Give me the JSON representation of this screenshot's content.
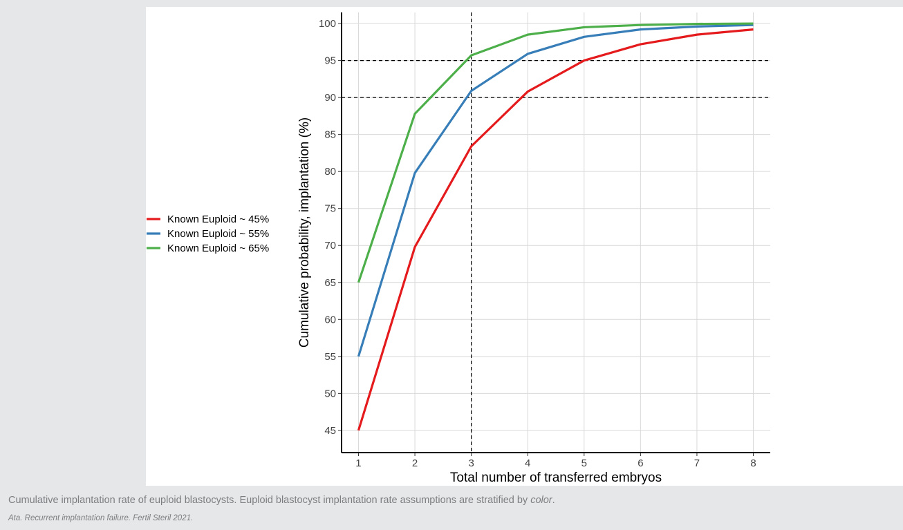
{
  "chart_data": {
    "type": "line",
    "title": "",
    "xlabel": "Total number of transferred embryos",
    "ylabel": "Cumulative probability, implantation (%)",
    "x": [
      1,
      2,
      3,
      4,
      5,
      6,
      7,
      8
    ],
    "xlim": [
      0.7,
      8.3
    ],
    "ylim": [
      42,
      101.5
    ],
    "y_ticks": [
      45,
      50,
      55,
      60,
      65,
      70,
      75,
      80,
      85,
      90,
      95,
      100
    ],
    "grid": true,
    "legend_position": "left",
    "series": [
      {
        "name": "Known Euploid ~ 45%",
        "color": "#e41a1c",
        "values": [
          45,
          69.8,
          83.4,
          90.8,
          95.0,
          97.2,
          98.5,
          99.2
        ]
      },
      {
        "name": "Known Euploid ~ 55%",
        "color": "#377eb8",
        "values": [
          55,
          79.8,
          90.9,
          95.9,
          98.2,
          99.2,
          99.6,
          99.8
        ]
      },
      {
        "name": "Known Euploid ~ 65%",
        "color": "#4daf4a",
        "values": [
          65,
          87.8,
          95.7,
          98.5,
          99.5,
          99.8,
          99.95,
          100
        ]
      }
    ],
    "reference_lines": {
      "x": [
        3
      ],
      "y": [
        90,
        95
      ]
    }
  },
  "caption": {
    "before_em": "Cumulative implantation rate of euploid blastocysts. Euploid blastocyst implantation rate assumptions are stratified by ",
    "em": "color",
    "after_em": "."
  },
  "citation": "Ata. Recurrent implantation failure. Fertil Steril 2021."
}
